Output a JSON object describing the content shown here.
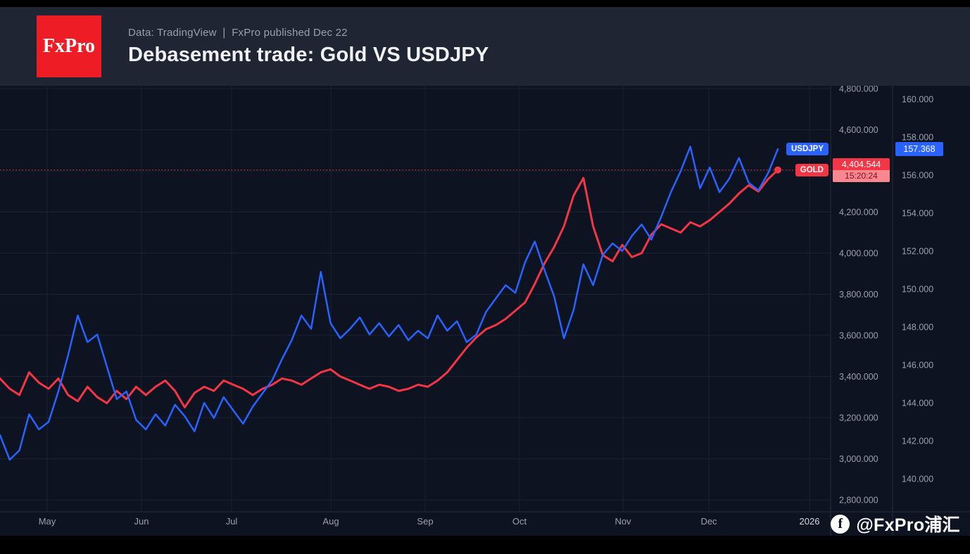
{
  "header": {
    "logo_text": "FxPro",
    "subtitle": "Data: TradingView ❘ FxPro published Dec 22",
    "title": "Debasement trade: Gold VS USDJPY"
  },
  "watermark": {
    "icon": "facebook-icon",
    "icon_letter": "f",
    "handle": "@FxPro浦汇"
  },
  "colors": {
    "page_bg": "#000000",
    "header_bg": "#1f2532",
    "chart_bg": "#0d1321",
    "grid": "#1b2233",
    "axis_line": "#2a2e39",
    "axis_text": "#9ba1ad",
    "bright_text": "#d6d9e0",
    "usdjpy_blue": "#2962ff",
    "gold_red": "#f23645",
    "logo_red": "#ee1c25"
  },
  "chart_data": {
    "type": "line",
    "title": "Debasement trade: Gold VS USDJPY",
    "x_labels": [
      "May",
      "Jun",
      "Jul",
      "Aug",
      "Sep",
      "Oct",
      "Nov",
      "Dec",
      "2026"
    ],
    "gold_axis": {
      "ticks": [
        4800,
        4600,
        4400,
        4200,
        4000,
        3800,
        3600,
        3400,
        3200,
        3000,
        2800
      ],
      "range": [
        2740,
        4815
      ]
    },
    "usdjpy_axis": {
      "ticks": [
        160,
        158,
        156,
        154,
        152,
        150,
        148,
        146,
        144,
        142,
        140
      ],
      "range": [
        138.3,
        160.7
      ]
    },
    "legend_position": "right-edge-pills",
    "grid": true,
    "series": [
      {
        "name": "GOLD",
        "axis": "gold",
        "color": "#f23645",
        "values": [
          3390,
          3340,
          3310,
          3420,
          3370,
          3340,
          3390,
          3310,
          3280,
          3350,
          3300,
          3270,
          3330,
          3290,
          3350,
          3310,
          3350,
          3380,
          3330,
          3250,
          3320,
          3350,
          3330,
          3380,
          3360,
          3340,
          3310,
          3340,
          3360,
          3390,
          3380,
          3360,
          3390,
          3420,
          3435,
          3400,
          3380,
          3360,
          3340,
          3360,
          3350,
          3330,
          3340,
          3360,
          3350,
          3380,
          3420,
          3480,
          3540,
          3590,
          3630,
          3650,
          3680,
          3720,
          3760,
          3850,
          3950,
          4030,
          4130,
          4280,
          4365,
          4130,
          3990,
          3960,
          4040,
          3980,
          4000,
          4090,
          4140,
          4120,
          4100,
          4150,
          4130,
          4160,
          4200,
          4240,
          4290,
          4330,
          4300,
          4360,
          4404.544
        ]
      },
      {
        "name": "USDJPY",
        "axis": "usdjpy",
        "color": "#2962ff",
        "values": [
          142.3,
          141.0,
          141.5,
          143.4,
          142.6,
          143.0,
          144.6,
          146.5,
          148.6,
          147.2,
          147.6,
          145.9,
          144.2,
          144.6,
          143.1,
          142.6,
          143.4,
          142.8,
          143.9,
          143.3,
          142.5,
          144.0,
          143.2,
          144.3,
          143.6,
          142.9,
          143.8,
          144.5,
          145.2,
          146.3,
          147.3,
          148.6,
          147.9,
          150.9,
          148.2,
          147.4,
          147.9,
          148.5,
          147.6,
          148.2,
          147.5,
          148.1,
          147.3,
          147.8,
          147.4,
          148.6,
          147.8,
          148.3,
          147.2,
          147.6,
          148.8,
          149.5,
          150.2,
          149.8,
          151.4,
          152.5,
          151.0,
          149.6,
          147.4,
          148.9,
          151.3,
          150.2,
          151.8,
          152.4,
          152.0,
          152.8,
          153.4,
          152.6,
          153.8,
          155.1,
          156.2,
          157.5,
          155.3,
          156.4,
          155.1,
          155.8,
          156.9,
          155.6,
          155.2,
          156.1,
          157.368
        ]
      }
    ],
    "current": {
      "gold": 4404.544,
      "usdjpy": 157.368
    },
    "price_labels": {
      "usdjpy_label": "USDJPY",
      "usdjpy_value": "157.368",
      "gold_label": "GOLD",
      "gold_value": "4,404.544",
      "gold_time": "15:20:24"
    }
  }
}
